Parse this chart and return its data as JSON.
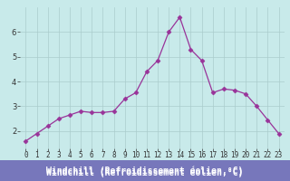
{
  "x": [
    0,
    1,
    2,
    3,
    4,
    5,
    6,
    7,
    8,
    9,
    10,
    11,
    12,
    13,
    14,
    15,
    16,
    17,
    18,
    19,
    20,
    21,
    22,
    23
  ],
  "y": [
    1.6,
    1.9,
    2.2,
    2.5,
    2.65,
    2.8,
    2.75,
    2.75,
    2.8,
    3.3,
    3.55,
    4.4,
    4.85,
    6.0,
    6.6,
    5.3,
    4.85,
    3.55,
    3.7,
    3.65,
    3.5,
    3.0,
    2.45,
    1.9
  ],
  "line_color": "#993399",
  "marker": "D",
  "marker_size": 2.5,
  "background_color": "#c8eaea",
  "grid_color": "#aacccc",
  "xlabel": "Windchill (Refroidissement éolien,°C)",
  "xlabel_color": "white",
  "xlabel_bg": "#7777bb",
  "ylim": [
    1.3,
    7.0
  ],
  "xlim": [
    -0.5,
    23.5
  ],
  "yticks": [
    2,
    3,
    4,
    5,
    6
  ],
  "xticks": [
    0,
    1,
    2,
    3,
    4,
    5,
    6,
    7,
    8,
    9,
    10,
    11,
    12,
    13,
    14,
    15,
    16,
    17,
    18,
    19,
    20,
    21,
    22,
    23
  ],
  "tick_label_fontsize": 5.5,
  "xlabel_fontsize": 7.0
}
